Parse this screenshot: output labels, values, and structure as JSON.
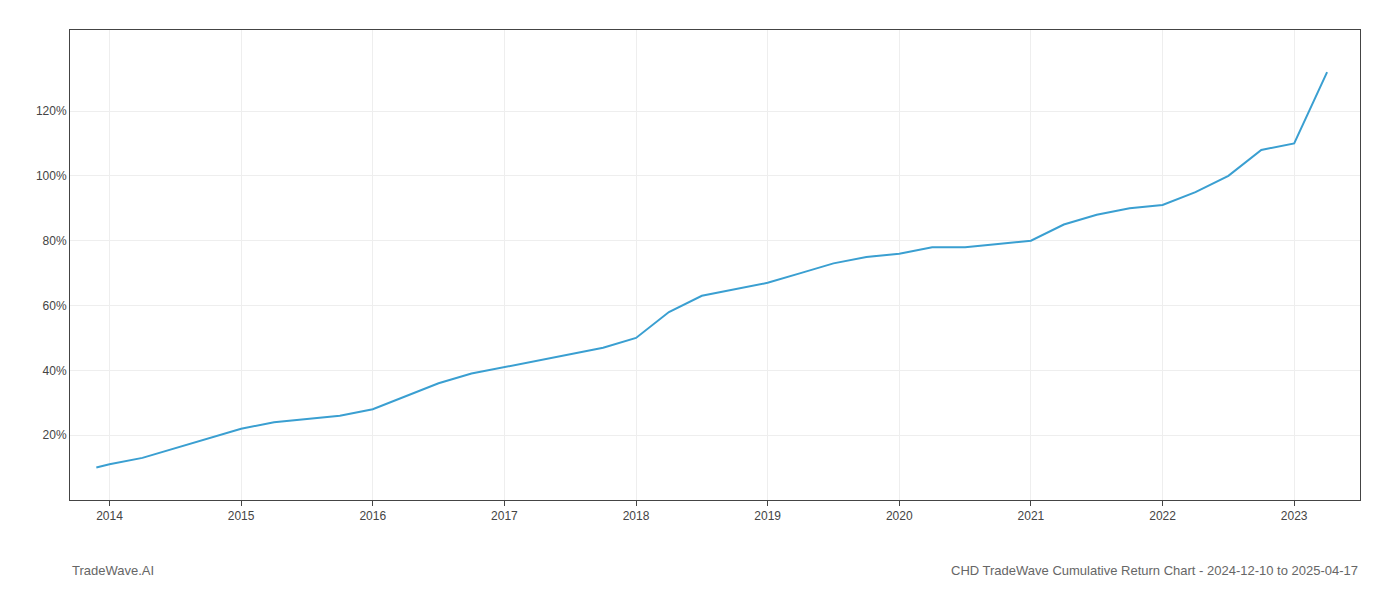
{
  "chart_data": {
    "type": "line",
    "annotations": [
      "TradeWave.AI",
      "CHD TradeWave Cumulative Return Chart - 2024-12-10 to 2025-04-17"
    ],
    "x": [
      2013.9,
      2014.0,
      2014.25,
      2014.5,
      2014.75,
      2015.0,
      2015.25,
      2015.5,
      2015.75,
      2016.0,
      2016.25,
      2016.5,
      2016.75,
      2017.0,
      2017.25,
      2017.5,
      2017.75,
      2018.0,
      2018.25,
      2018.5,
      2018.75,
      2019.0,
      2019.25,
      2019.5,
      2019.75,
      2020.0,
      2020.25,
      2020.5,
      2020.75,
      2021.0,
      2021.25,
      2021.5,
      2021.75,
      2022.0,
      2022.25,
      2022.5,
      2022.75,
      2023.0,
      2023.25
    ],
    "values": [
      10,
      11,
      13,
      16,
      19,
      22,
      24,
      25,
      26,
      28,
      32,
      36,
      39,
      41,
      43,
      45,
      47,
      50,
      58,
      63,
      65,
      67,
      70,
      73,
      75,
      76,
      78,
      78,
      79,
      80,
      85,
      88,
      90,
      91,
      95,
      100,
      108,
      110,
      132
    ],
    "color": "#3a9fd1",
    "xlim": [
      2013.7,
      2023.5
    ],
    "ylim": [
      0,
      145
    ],
    "xticks": [
      2014,
      2015,
      2016,
      2017,
      2018,
      2019,
      2020,
      2021,
      2022,
      2023
    ],
    "yticks": [
      {
        "value": 20,
        "label": "20%"
      },
      {
        "value": 40,
        "label": "40%"
      },
      {
        "value": 60,
        "label": "60%"
      },
      {
        "value": 80,
        "label": "80%"
      },
      {
        "value": 100,
        "label": "100%"
      },
      {
        "value": 120,
        "label": "120%"
      }
    ],
    "grid": true
  }
}
